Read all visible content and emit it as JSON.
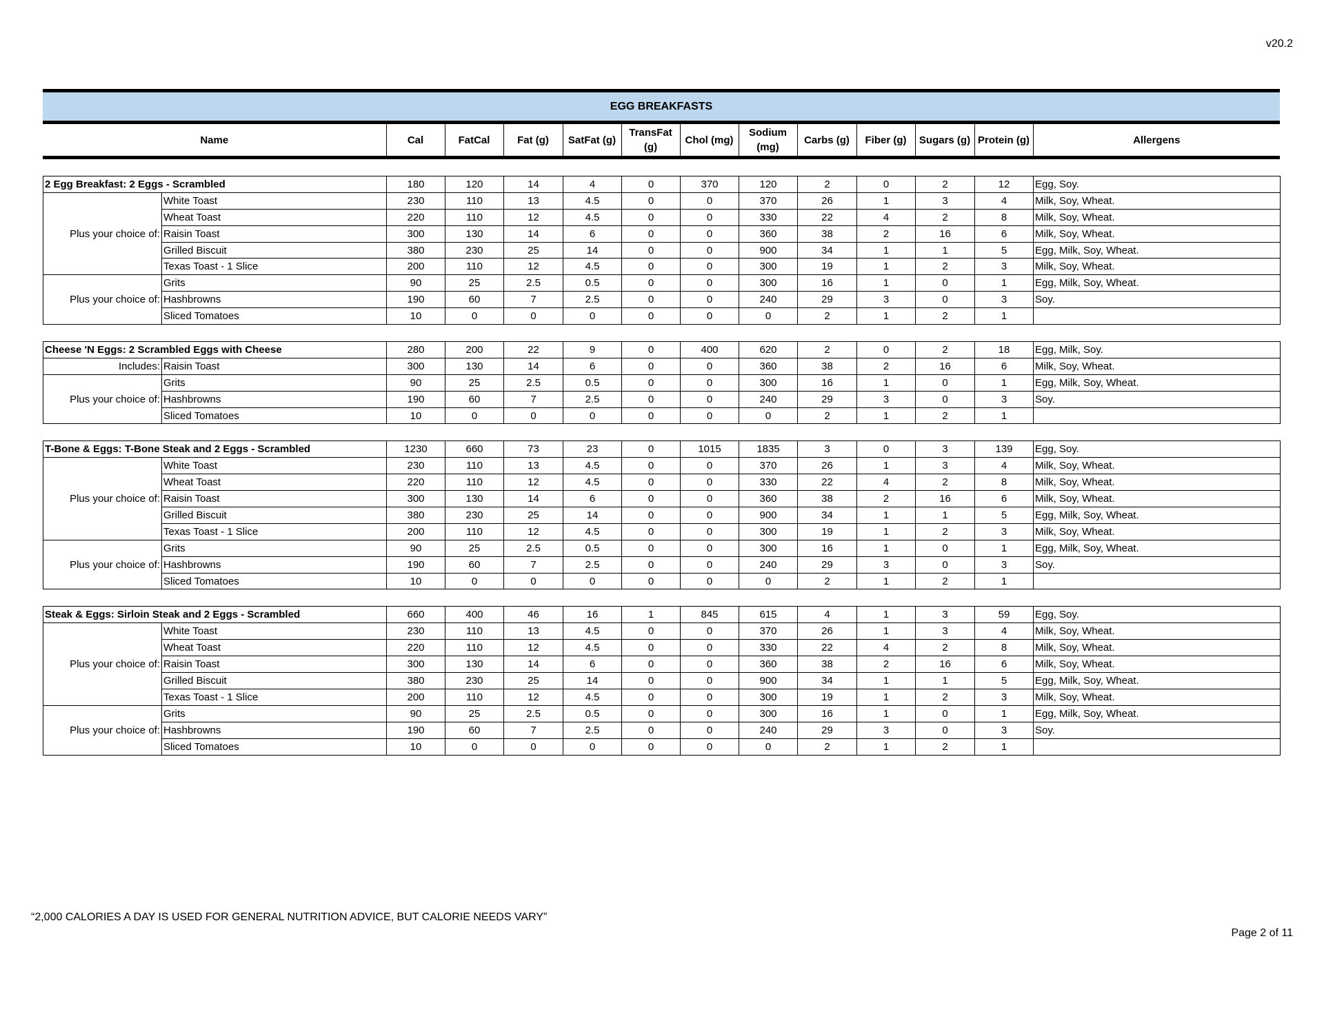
{
  "version": "v20.2",
  "title": "EGG BREAKFASTS",
  "columns": [
    "Name",
    "Cal",
    "FatCal",
    "Fat (g)",
    "SatFat (g)",
    "TransFat (g)",
    "Chol (mg)",
    "Sodium (mg)",
    "Carbs (g)",
    "Fiber (g)",
    "Sugars (g)",
    "Protein (g)",
    "Allergens"
  ],
  "sections": [
    {
      "main": {
        "name": "2 Egg Breakfast: 2 Eggs - Scrambled",
        "values": [
          "180",
          "120",
          "14",
          "4",
          "0",
          "370",
          "120",
          "2",
          "0",
          "2",
          "12"
        ],
        "allergens": "Egg, Soy."
      },
      "groups": [
        {
          "label": "Plus your choice of:",
          "items": [
            {
              "name": "White Toast",
              "values": [
                "230",
                "110",
                "13",
                "4.5",
                "0",
                "0",
                "370",
                "26",
                "1",
                "3",
                "4"
              ],
              "allergens": "Milk, Soy, Wheat."
            },
            {
              "name": "Wheat Toast",
              "values": [
                "220",
                "110",
                "12",
                "4.5",
                "0",
                "0",
                "330",
                "22",
                "4",
                "2",
                "8"
              ],
              "allergens": "Milk, Soy, Wheat."
            },
            {
              "name": "Raisin Toast",
              "values": [
                "300",
                "130",
                "14",
                "6",
                "0",
                "0",
                "360",
                "38",
                "2",
                "16",
                "6"
              ],
              "allergens": "Milk, Soy, Wheat."
            },
            {
              "name": "Grilled Biscuit",
              "values": [
                "380",
                "230",
                "25",
                "14",
                "0",
                "0",
                "900",
                "34",
                "1",
                "1",
                "5"
              ],
              "allergens": "Egg, Milk, Soy, Wheat."
            },
            {
              "name": "Texas Toast - 1 Slice",
              "values": [
                "200",
                "110",
                "12",
                "4.5",
                "0",
                "0",
                "300",
                "19",
                "1",
                "2",
                "3"
              ],
              "allergens": "Milk, Soy, Wheat."
            }
          ]
        },
        {
          "label": "Plus your choice of:",
          "items": [
            {
              "name": "Grits",
              "values": [
                "90",
                "25",
                "2.5",
                "0.5",
                "0",
                "0",
                "300",
                "16",
                "1",
                "0",
                "1"
              ],
              "allergens": "Egg, Milk, Soy, Wheat."
            },
            {
              "name": "Hashbrowns",
              "values": [
                "190",
                "60",
                "7",
                "2.5",
                "0",
                "0",
                "240",
                "29",
                "3",
                "0",
                "3"
              ],
              "allergens": "Soy."
            },
            {
              "name": "Sliced Tomatoes",
              "values": [
                "10",
                "0",
                "0",
                "0",
                "0",
                "0",
                "0",
                "2",
                "1",
                "2",
                "1"
              ],
              "allergens": ""
            }
          ]
        }
      ]
    },
    {
      "main": {
        "name": "Cheese 'N Eggs: 2 Scrambled Eggs with Cheese",
        "values": [
          "280",
          "200",
          "22",
          "9",
          "0",
          "400",
          "620",
          "2",
          "0",
          "2",
          "18"
        ],
        "allergens": "Egg, Milk, Soy."
      },
      "groups": [
        {
          "label": "Includes:",
          "items": [
            {
              "name": "Raisin Toast",
              "values": [
                "300",
                "130",
                "14",
                "6",
                "0",
                "0",
                "360",
                "38",
                "2",
                "16",
                "6"
              ],
              "allergens": "Milk, Soy, Wheat."
            }
          ]
        },
        {
          "label": "Plus your choice of:",
          "items": [
            {
              "name": "Grits",
              "values": [
                "90",
                "25",
                "2.5",
                "0.5",
                "0",
                "0",
                "300",
                "16",
                "1",
                "0",
                "1"
              ],
              "allergens": "Egg, Milk, Soy, Wheat."
            },
            {
              "name": "Hashbrowns",
              "values": [
                "190",
                "60",
                "7",
                "2.5",
                "0",
                "0",
                "240",
                "29",
                "3",
                "0",
                "3"
              ],
              "allergens": "Soy."
            },
            {
              "name": "Sliced Tomatoes",
              "values": [
                "10",
                "0",
                "0",
                "0",
                "0",
                "0",
                "0",
                "2",
                "1",
                "2",
                "1"
              ],
              "allergens": ""
            }
          ]
        }
      ]
    },
    {
      "main": {
        "name": "T-Bone & Eggs: T-Bone Steak and 2 Eggs - Scrambled",
        "values": [
          "1230",
          "660",
          "73",
          "23",
          "0",
          "1015",
          "1835",
          "3",
          "0",
          "3",
          "139"
        ],
        "allergens": "Egg, Soy."
      },
      "groups": [
        {
          "label": "Plus your choice of:",
          "items": [
            {
              "name": "White Toast",
              "values": [
                "230",
                "110",
                "13",
                "4.5",
                "0",
                "0",
                "370",
                "26",
                "1",
                "3",
                "4"
              ],
              "allergens": "Milk, Soy, Wheat."
            },
            {
              "name": "Wheat Toast",
              "values": [
                "220",
                "110",
                "12",
                "4.5",
                "0",
                "0",
                "330",
                "22",
                "4",
                "2",
                "8"
              ],
              "allergens": "Milk, Soy, Wheat."
            },
            {
              "name": "Raisin Toast",
              "values": [
                "300",
                "130",
                "14",
                "6",
                "0",
                "0",
                "360",
                "38",
                "2",
                "16",
                "6"
              ],
              "allergens": "Milk, Soy, Wheat."
            },
            {
              "name": "Grilled Biscuit",
              "values": [
                "380",
                "230",
                "25",
                "14",
                "0",
                "0",
                "900",
                "34",
                "1",
                "1",
                "5"
              ],
              "allergens": "Egg, Milk, Soy, Wheat."
            },
            {
              "name": "Texas Toast - 1 Slice",
              "values": [
                "200",
                "110",
                "12",
                "4.5",
                "0",
                "0",
                "300",
                "19",
                "1",
                "2",
                "3"
              ],
              "allergens": "Milk, Soy, Wheat."
            }
          ]
        },
        {
          "label": "Plus your choice of:",
          "items": [
            {
              "name": "Grits",
              "values": [
                "90",
                "25",
                "2.5",
                "0.5",
                "0",
                "0",
                "300",
                "16",
                "1",
                "0",
                "1"
              ],
              "allergens": "Egg, Milk, Soy, Wheat."
            },
            {
              "name": "Hashbrowns",
              "values": [
                "190",
                "60",
                "7",
                "2.5",
                "0",
                "0",
                "240",
                "29",
                "3",
                "0",
                "3"
              ],
              "allergens": "Soy."
            },
            {
              "name": "Sliced Tomatoes",
              "values": [
                "10",
                "0",
                "0",
                "0",
                "0",
                "0",
                "0",
                "2",
                "1",
                "2",
                "1"
              ],
              "allergens": ""
            }
          ]
        }
      ]
    },
    {
      "main": {
        "name": "Steak & Eggs: Sirloin Steak and 2 Eggs - Scrambled",
        "values": [
          "660",
          "400",
          "46",
          "16",
          "1",
          "845",
          "615",
          "4",
          "1",
          "3",
          "59"
        ],
        "allergens": "Egg, Soy."
      },
      "groups": [
        {
          "label": "Plus your choice of:",
          "items": [
            {
              "name": "White Toast",
              "values": [
                "230",
                "110",
                "13",
                "4.5",
                "0",
                "0",
                "370",
                "26",
                "1",
                "3",
                "4"
              ],
              "allergens": "Milk, Soy, Wheat."
            },
            {
              "name": "Wheat Toast",
              "values": [
                "220",
                "110",
                "12",
                "4.5",
                "0",
                "0",
                "330",
                "22",
                "4",
                "2",
                "8"
              ],
              "allergens": "Milk, Soy, Wheat."
            },
            {
              "name": "Raisin Toast",
              "values": [
                "300",
                "130",
                "14",
                "6",
                "0",
                "0",
                "360",
                "38",
                "2",
                "16",
                "6"
              ],
              "allergens": "Milk, Soy, Wheat."
            },
            {
              "name": "Grilled Biscuit",
              "values": [
                "380",
                "230",
                "25",
                "14",
                "0",
                "0",
                "900",
                "34",
                "1",
                "1",
                "5"
              ],
              "allergens": "Egg, Milk, Soy, Wheat."
            },
            {
              "name": "Texas Toast - 1 Slice",
              "values": [
                "200",
                "110",
                "12",
                "4.5",
                "0",
                "0",
                "300",
                "19",
                "1",
                "2",
                "3"
              ],
              "allergens": "Milk, Soy, Wheat."
            }
          ]
        },
        {
          "label": "Plus your choice of:",
          "items": [
            {
              "name": "Grits",
              "values": [
                "90",
                "25",
                "2.5",
                "0.5",
                "0",
                "0",
                "300",
                "16",
                "1",
                "0",
                "1"
              ],
              "allergens": "Egg, Milk, Soy, Wheat."
            },
            {
              "name": "Hashbrowns",
              "values": [
                "190",
                "60",
                "7",
                "2.5",
                "0",
                "0",
                "240",
                "29",
                "3",
                "0",
                "3"
              ],
              "allergens": "Soy."
            },
            {
              "name": "Sliced Tomatoes",
              "values": [
                "10",
                "0",
                "0",
                "0",
                "0",
                "0",
                "0",
                "2",
                "1",
                "2",
                "1"
              ],
              "allergens": ""
            }
          ]
        }
      ]
    }
  ],
  "footer": {
    "note": "“2,000 CALORIES A DAY IS USED FOR GENERAL NUTRITION ADVICE, BUT CALORIE NEEDS VARY”",
    "page": "Page 2 of 11"
  },
  "colors": {
    "title_band": "#bdd7ee"
  }
}
